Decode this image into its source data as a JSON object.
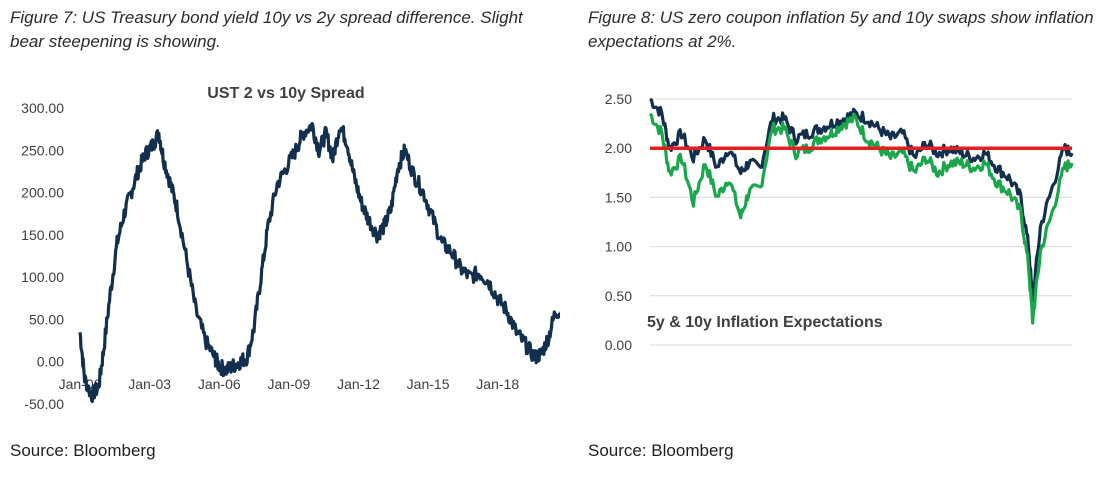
{
  "figures": {
    "left_caption": "Figure 7: US Treasury bond yield 10y vs 2y spread difference. Slight bear steepening is showing.",
    "right_caption": "Figure 8: US zero coupon inflation 5y and 10y swaps show inflation expectations at 2%.",
    "left_source": "Source: Bloomberg",
    "right_source": "Source: Bloomberg"
  },
  "chart_data": [
    {
      "type": "line",
      "title": "UST 2 vs 10y Spread",
      "xlabel": "",
      "ylabel": "",
      "ylim": [
        -50,
        300
      ],
      "xlim": [
        2000.0,
        2020.9
      ],
      "y_ticks": [
        "300.00",
        "250.00",
        "200.00",
        "150.00",
        "100.00",
        "50.00",
        "0.00",
        "-50.00"
      ],
      "x_ticks": [
        {
          "label": "Jan-00",
          "x": 2000.0
        },
        {
          "label": "Jan-03",
          "x": 2003.0
        },
        {
          "label": "Jan-06",
          "x": 2006.0
        },
        {
          "label": "Jan-09",
          "x": 2009.0
        },
        {
          "label": "Jan-12",
          "x": 2012.0
        },
        {
          "label": "Jan-15",
          "x": 2015.0
        },
        {
          "label": "Jan-18",
          "x": 2018.0
        }
      ],
      "grid": false,
      "colors": {
        "series": "#12304e"
      },
      "series": [
        {
          "name": "",
          "x": [
            2000.0,
            2000.2,
            2000.5,
            2000.8,
            2001.0,
            2001.3,
            2001.6,
            2001.9,
            2002.2,
            2002.5,
            2002.8,
            2003.1,
            2003.4,
            2003.6,
            2003.9,
            2004.2,
            2004.6,
            2005.0,
            2005.4,
            2005.8,
            2006.0,
            2006.3,
            2006.6,
            2006.9,
            2007.2,
            2007.5,
            2007.8,
            2008.1,
            2008.5,
            2008.9,
            2009.3,
            2009.6,
            2010.0,
            2010.3,
            2010.6,
            2010.9,
            2011.2,
            2011.5,
            2011.8,
            2012.1,
            2012.4,
            2012.8,
            2013.1,
            2013.4,
            2013.7,
            2014.0,
            2014.4,
            2014.8,
            2015.2,
            2015.6,
            2016.0,
            2016.4,
            2016.8,
            2017.2,
            2017.6,
            2018.0,
            2018.4,
            2018.8,
            2019.2,
            2019.6,
            2019.9,
            2020.2,
            2020.5,
            2020.9
          ],
          "y": [
            35,
            -20,
            -40,
            -30,
            10,
            80,
            140,
            175,
            200,
            225,
            245,
            255,
            270,
            240,
            210,
            180,
            120,
            60,
            25,
            5,
            -5,
            -10,
            -5,
            0,
            5,
            40,
            100,
            160,
            210,
            230,
            250,
            270,
            280,
            250,
            270,
            240,
            280,
            260,
            220,
            190,
            170,
            150,
            160,
            180,
            230,
            250,
            220,
            200,
            170,
            140,
            130,
            110,
            100,
            105,
            95,
            75,
            60,
            35,
            20,
            5,
            10,
            30,
            60,
            55
          ]
        }
      ]
    },
    {
      "type": "line",
      "title": "5y & 10y Inflation Expectations",
      "xlabel": "",
      "ylabel": "",
      "ylim": [
        0,
        2.5
      ],
      "xlim": [
        2010.5,
        2021.2
      ],
      "y_ticks": [
        "2.50",
        "2.00",
        "1.50",
        "1.00",
        "0.50",
        "0.00"
      ],
      "grid": true,
      "reference_line": {
        "y": 2.0,
        "color": "#e31f1f"
      },
      "colors": {
        "series_a": "#12304e",
        "series_b": "#1aa64a"
      },
      "series": [
        {
          "name": "",
          "x": [
            2010.5,
            2010.8,
            2011.0,
            2011.3,
            2011.6,
            2011.9,
            2012.2,
            2012.5,
            2012.8,
            2013.0,
            2013.3,
            2013.6,
            2013.9,
            2014.2,
            2014.5,
            2014.8,
            2015.1,
            2015.4,
            2015.7,
            2016.0,
            2016.3,
            2016.6,
            2016.9,
            2017.2,
            2017.5,
            2017.8,
            2018.1,
            2018.4,
            2018.7,
            2019.0,
            2019.3,
            2019.6,
            2019.9,
            2020.1,
            2020.2,
            2020.4,
            2020.7,
            2021.0,
            2021.2
          ],
          "y": [
            2.5,
            2.35,
            2.0,
            2.15,
            1.9,
            2.1,
            1.8,
            2.0,
            1.75,
            1.85,
            1.8,
            2.3,
            2.3,
            2.1,
            2.15,
            2.2,
            2.25,
            2.3,
            2.35,
            2.3,
            2.2,
            2.1,
            2.15,
            1.9,
            2.05,
            1.95,
            2.0,
            1.95,
            1.9,
            1.95,
            1.8,
            1.7,
            1.5,
            1.0,
            0.45,
            1.2,
            1.6,
            2.0,
            1.95
          ]
        },
        {
          "name": "",
          "x": [
            2010.5,
            2010.8,
            2011.0,
            2011.3,
            2011.6,
            2011.9,
            2012.2,
            2012.5,
            2012.8,
            2013.0,
            2013.3,
            2013.6,
            2013.9,
            2014.2,
            2014.5,
            2014.8,
            2015.1,
            2015.4,
            2015.7,
            2016.0,
            2016.3,
            2016.6,
            2016.9,
            2017.2,
            2017.5,
            2017.8,
            2018.1,
            2018.4,
            2018.7,
            2019.0,
            2019.3,
            2019.6,
            2019.9,
            2020.1,
            2020.2,
            2020.4,
            2020.7,
            2021.0,
            2021.2
          ],
          "y": [
            2.35,
            2.15,
            1.75,
            1.9,
            1.45,
            1.85,
            1.5,
            1.7,
            1.3,
            1.55,
            1.6,
            2.2,
            2.2,
            1.95,
            2.0,
            2.1,
            2.15,
            2.25,
            2.3,
            2.1,
            2.0,
            1.9,
            1.95,
            1.75,
            1.9,
            1.75,
            1.85,
            1.85,
            1.8,
            1.85,
            1.65,
            1.55,
            1.35,
            0.8,
            0.25,
            0.95,
            1.35,
            1.8,
            1.85
          ]
        }
      ]
    }
  ]
}
